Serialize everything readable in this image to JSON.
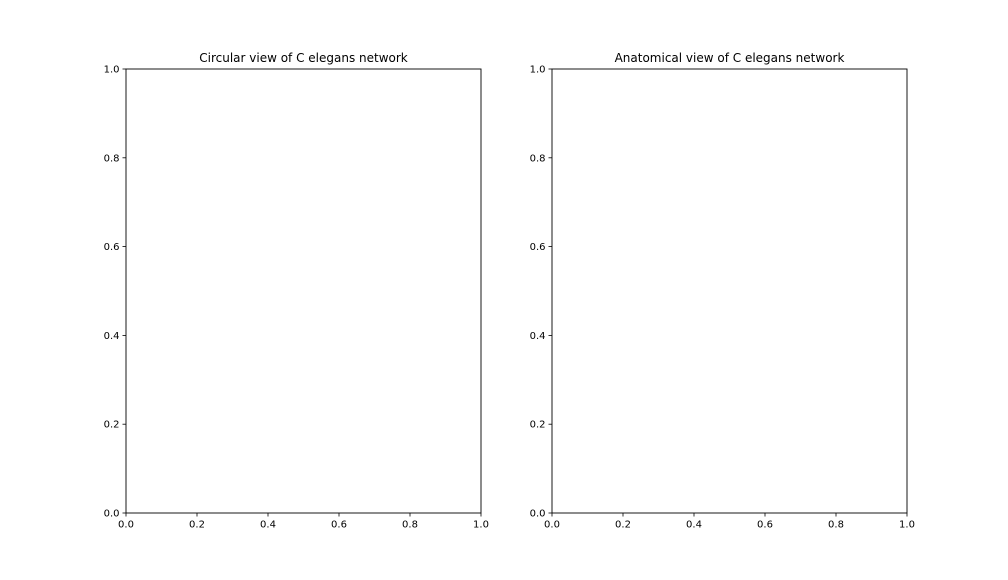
{
  "chart_data": [
    {
      "type": "scatter",
      "title": "Circular view of C elegans network",
      "xlabel": "",
      "ylabel": "",
      "xlim": [
        0,
        1
      ],
      "ylim": [
        0,
        1
      ],
      "grid": false,
      "x_ticks": [
        0.0,
        0.2,
        0.4,
        0.6,
        0.8,
        1.0
      ],
      "y_ticks": [
        0.0,
        0.2,
        0.4,
        0.6,
        0.8,
        1.0
      ],
      "x_tick_labels": [
        "0.0",
        "0.2",
        "0.4",
        "0.6",
        "0.8",
        "1.0"
      ],
      "y_tick_labels": [
        "0.0",
        "0.2",
        "0.4",
        "0.6",
        "0.8",
        "1.0"
      ],
      "series": []
    },
    {
      "type": "scatter",
      "title": "Anatomical view of C elegans network",
      "xlabel": "",
      "ylabel": "",
      "xlim": [
        0,
        1
      ],
      "ylim": [
        0,
        1
      ],
      "grid": false,
      "x_ticks": [
        0.0,
        0.2,
        0.4,
        0.6,
        0.8,
        1.0
      ],
      "y_ticks": [
        0.0,
        0.2,
        0.4,
        0.6,
        0.8,
        1.0
      ],
      "x_tick_labels": [
        "0.0",
        "0.2",
        "0.4",
        "0.6",
        "0.8",
        "1.0"
      ],
      "y_tick_labels": [
        "0.0",
        "0.2",
        "0.4",
        "0.6",
        "0.8",
        "1.0"
      ],
      "series": []
    }
  ]
}
